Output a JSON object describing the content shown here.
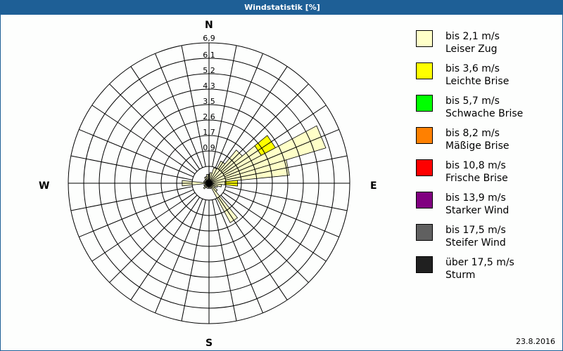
{
  "window": {
    "title": "Windstatistik [%]",
    "date": "23.8.2016"
  },
  "compass": {
    "n": "N",
    "e": "E",
    "s": "S",
    "w": "W"
  },
  "legend": [
    {
      "range": "bis 2,1 m/s",
      "name": "Leiser Zug",
      "color": "#ffffc8"
    },
    {
      "range": "bis 3,6 m/s",
      "name": "Leichte Brise",
      "color": "#ffff00"
    },
    {
      "range": "bis 5,7 m/s",
      "name": "Schwache Brise",
      "color": "#00ff00"
    },
    {
      "range": "bis 8,2 m/s",
      "name": "Mäßige Brise",
      "color": "#ff8000"
    },
    {
      "range": "bis 10,8 m/s",
      "name": "Frische Brise",
      "color": "#ff0000"
    },
    {
      "range": "bis 13,9 m/s",
      "name": "Starker Wind",
      "color": "#800080"
    },
    {
      "range": "bis 17,5 m/s",
      "name": "Steifer Wind",
      "color": "#606060"
    },
    {
      "range": "über 17,5 m/s",
      "name": "Sturm",
      "color": "#202020"
    }
  ],
  "chart_data": {
    "type": "polar-bar",
    "title": "Windstatistik [%]",
    "unit": "%",
    "ring_labels": [
      "0,9",
      "1,7",
      "2,6",
      "3,5",
      "4,3",
      "5,2",
      "6,1",
      "6,9"
    ],
    "rmax": 6.9,
    "sectors": 32,
    "directions_deg": [
      0,
      11.25,
      22.5,
      33.75,
      45,
      56.25,
      67.5,
      78.75,
      90,
      101.25,
      112.5,
      123.75,
      135,
      146.25,
      157.5,
      168.75,
      180,
      191.25,
      202.5,
      213.75,
      225,
      236.25,
      247.5,
      258.75,
      270,
      281.25,
      292.5,
      303.75,
      315,
      326.25,
      337.5,
      348.75
    ],
    "series": [
      {
        "name": "bis 2,1 m/s",
        "values": [
          0.5,
          0.6,
          0.9,
          1.4,
          2.4,
          3.3,
          6.8,
          4.5,
          0.9,
          0.7,
          0.5,
          0.4,
          0.6,
          2.5,
          0.3,
          0.3,
          0.2,
          0.3,
          0.2,
          0.3,
          0.4,
          0.3,
          0.3,
          0.2,
          1.5,
          0.3,
          0.3,
          0.2,
          0.3,
          0.4,
          0.4,
          0.5
        ]
      },
      {
        "name": "bis 3,6 m/s",
        "values": [
          0,
          0,
          0,
          0,
          0,
          0.9,
          0,
          0,
          0.7,
          0,
          0,
          0,
          0,
          0,
          0,
          0,
          0,
          0,
          0,
          0,
          0,
          0,
          0,
          0,
          0,
          0,
          0,
          0,
          0,
          0,
          0,
          0
        ]
      }
    ],
    "legend_position": "right"
  }
}
